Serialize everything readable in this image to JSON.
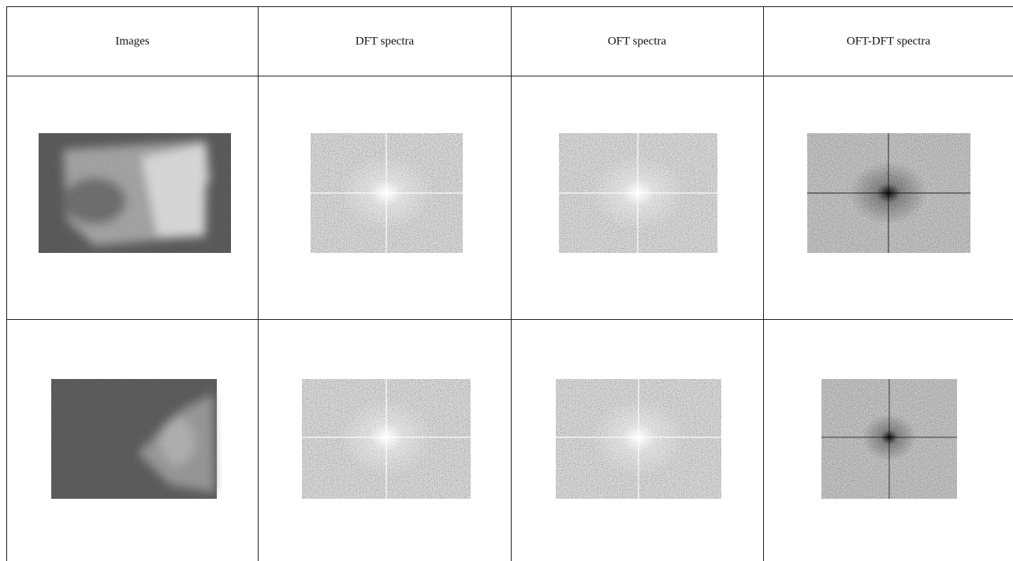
{
  "table": {
    "header": [
      "Images",
      "DFT spectra",
      "OFT spectra",
      "OFT-DFT spectra"
    ]
  }
}
